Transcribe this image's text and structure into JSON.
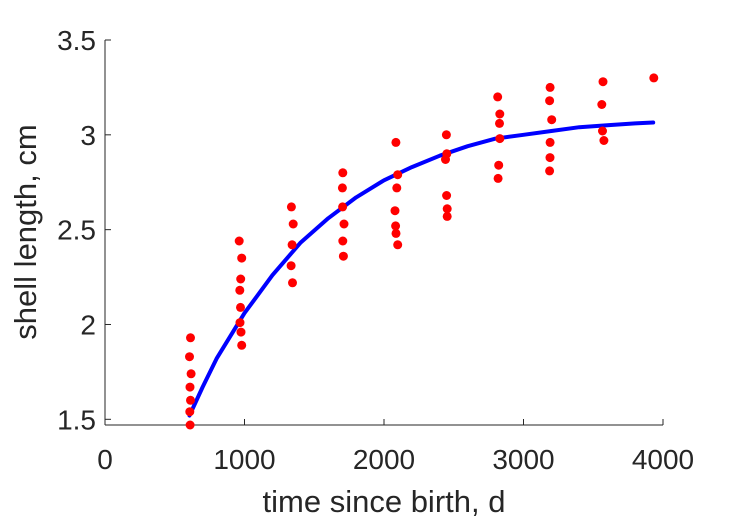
{
  "chart_data": {
    "type": "scatter",
    "title": "",
    "xlabel": "time since birth, d",
    "ylabel": "shell length, cm",
    "xlim": [
      0,
      4000
    ],
    "ylim": [
      1.47,
      3.5
    ],
    "x_ticks": [
      0,
      1000,
      2000,
      3000,
      4000
    ],
    "x_tick_labels": [
      "0",
      "1000",
      "2000",
      "3000",
      "4000"
    ],
    "y_ticks": [
      1.5,
      2,
      2.5,
      3,
      3.5
    ],
    "y_tick_labels": [
      "1.5",
      "2",
      "2.5",
      "3",
      "3.5"
    ],
    "grid": false,
    "legend": "none",
    "colors": {
      "points": "#ff0000",
      "fit": "#0000ff",
      "axis": "#262626"
    },
    "series": [
      {
        "kind": "points",
        "color": "#ff0000",
        "points": [
          [
            613,
            1.93
          ],
          [
            606,
            1.83
          ],
          [
            617,
            1.74
          ],
          [
            609,
            1.67
          ],
          [
            613,
            1.6
          ],
          [
            608,
            1.54
          ],
          [
            610,
            1.47
          ],
          [
            962,
            2.44
          ],
          [
            980,
            2.35
          ],
          [
            973,
            2.24
          ],
          [
            966,
            2.18
          ],
          [
            971,
            2.09
          ],
          [
            968,
            2.01
          ],
          [
            975,
            1.96
          ],
          [
            980,
            1.89
          ],
          [
            1336,
            2.62
          ],
          [
            1349,
            2.53
          ],
          [
            1341,
            2.42
          ],
          [
            1334,
            2.31
          ],
          [
            1344,
            2.22
          ],
          [
            1705,
            2.8
          ],
          [
            1702,
            2.72
          ],
          [
            1703,
            2.62
          ],
          [
            1713,
            2.53
          ],
          [
            1705,
            2.44
          ],
          [
            1709,
            2.36
          ],
          [
            2085,
            2.96
          ],
          [
            2098,
            2.79
          ],
          [
            2092,
            2.72
          ],
          [
            2079,
            2.6
          ],
          [
            2083,
            2.52
          ],
          [
            2086,
            2.48
          ],
          [
            2098,
            2.42
          ],
          [
            2447,
            3.0
          ],
          [
            2450,
            2.9
          ],
          [
            2441,
            2.87
          ],
          [
            2449,
            2.68
          ],
          [
            2453,
            2.61
          ],
          [
            2453,
            2.57
          ],
          [
            2815,
            3.2
          ],
          [
            2830,
            3.11
          ],
          [
            2828,
            3.06
          ],
          [
            2830,
            2.98
          ],
          [
            2822,
            2.84
          ],
          [
            2818,
            2.77
          ],
          [
            3191,
            3.25
          ],
          [
            3187,
            3.18
          ],
          [
            3202,
            3.08
          ],
          [
            3191,
            2.96
          ],
          [
            3190,
            2.88
          ],
          [
            3187,
            2.81
          ],
          [
            3570,
            3.28
          ],
          [
            3561,
            3.16
          ],
          [
            3566,
            3.02
          ],
          [
            3576,
            2.97
          ],
          [
            3934,
            3.3
          ]
        ]
      },
      {
        "kind": "fit",
        "color": "#0000ff",
        "points": [
          [
            606,
            1.52
          ],
          [
            700,
            1.67
          ],
          [
            800,
            1.82
          ],
          [
            1000,
            2.06
          ],
          [
            1200,
            2.26
          ],
          [
            1400,
            2.43
          ],
          [
            1600,
            2.56
          ],
          [
            1800,
            2.67
          ],
          [
            2000,
            2.76
          ],
          [
            2200,
            2.83
          ],
          [
            2400,
            2.89
          ],
          [
            2600,
            2.94
          ],
          [
            2800,
            2.98
          ],
          [
            3000,
            3.0
          ],
          [
            3200,
            3.02
          ],
          [
            3400,
            3.04
          ],
          [
            3600,
            3.05
          ],
          [
            3800,
            3.06
          ],
          [
            3930,
            3.065
          ]
        ]
      }
    ]
  }
}
